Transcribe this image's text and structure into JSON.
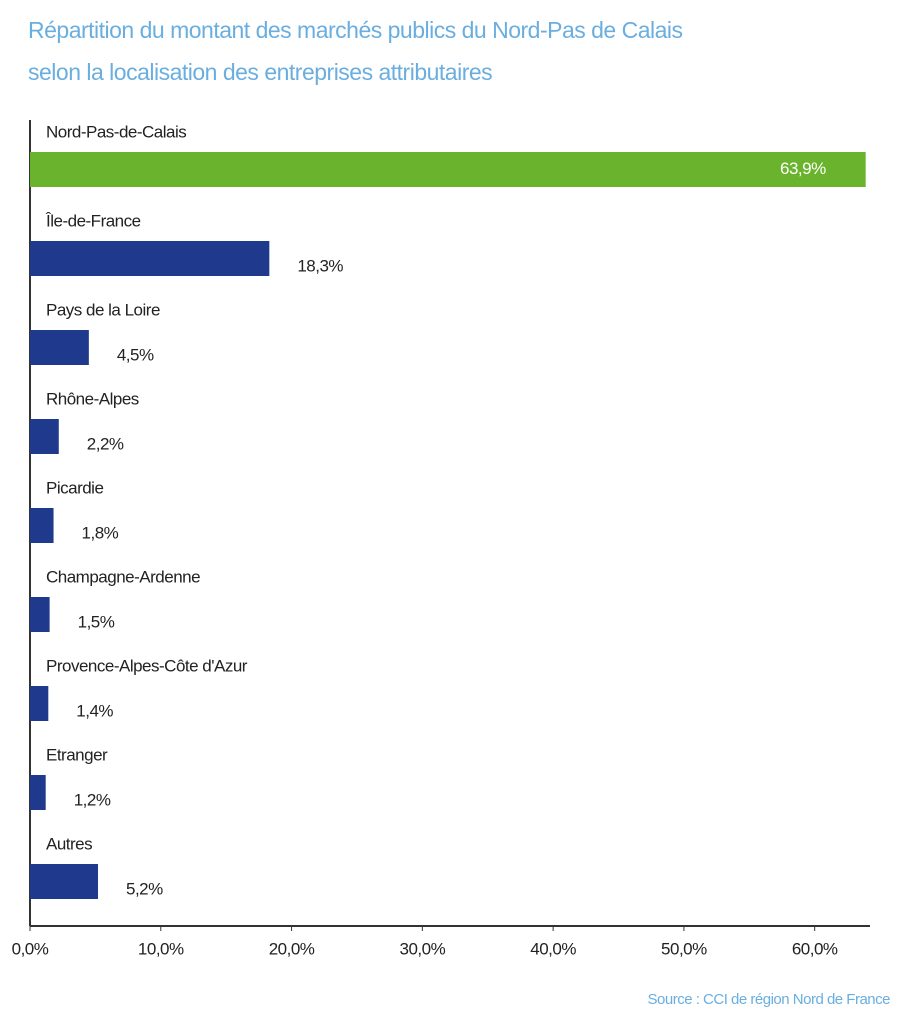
{
  "chart_data": {
    "type": "hbar",
    "title": [
      "Répartition du montant des marchés publics du Nord-Pas de Calais",
      "selon la localisation des entreprises attributaires"
    ],
    "categories": [
      "Nord-Pas-de-Calais",
      "Île-de-France",
      "Pays de la Loire",
      "Rhône-Alpes",
      "Picardie",
      "Champagne-Ardenne",
      "Provence-Alpes-Côte d'Azur",
      "Etranger",
      "Autres"
    ],
    "values": [
      63.9,
      18.3,
      4.5,
      2.2,
      1.8,
      1.5,
      1.4,
      1.2,
      5.2
    ],
    "value_labels": [
      "63,9%",
      "18,3%",
      "4,5%",
      "2,2%",
      "1,8%",
      "1,5%",
      "1,4%",
      "1,2%",
      "5,2%"
    ],
    "colors": [
      "#6ab42d",
      "#1f3a8c",
      "#1f3a8c",
      "#1f3a8c",
      "#1f3a8c",
      "#1f3a8c",
      "#1f3a8c",
      "#1f3a8c",
      "#1f3a8c"
    ],
    "xlim": [
      0,
      64
    ],
    "xticks": [
      {
        "value": 0,
        "label": "0,0%"
      },
      {
        "value": 10,
        "label": "10,0%"
      },
      {
        "value": 20,
        "label": "20,0%"
      },
      {
        "value": 30,
        "label": "30,0%"
      },
      {
        "value": 40,
        "label": "40,0%"
      },
      {
        "value": 50,
        "label": "50,0%"
      },
      {
        "value": 60,
        "label": "60,0%"
      }
    ],
    "source": "Source : CCI de région Nord de France"
  }
}
